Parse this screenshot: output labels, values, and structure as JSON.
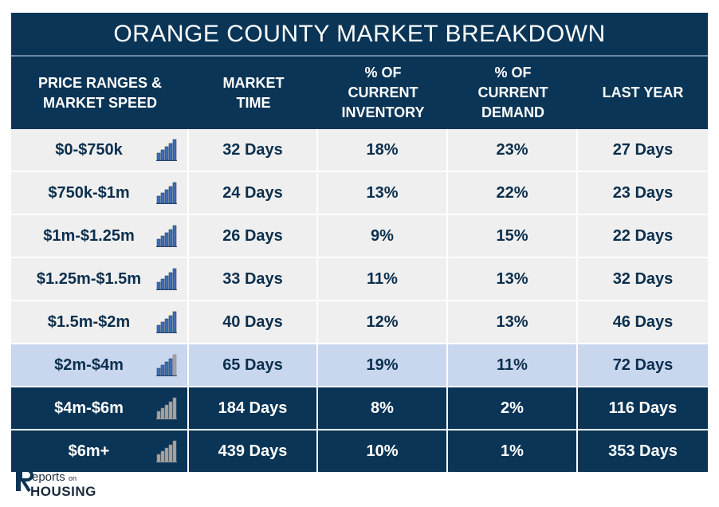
{
  "title": "ORANGE COUNTY MARKET BREAKDOWN",
  "headers": [
    "PRICE RANGES &\nMARKET SPEED",
    "MARKET\nTIME",
    "% OF\nCURRENT\nINVENTORY",
    "% OF\nCURRENT\nDEMAND",
    "LAST YEAR"
  ],
  "rows": [
    {
      "range": "$0-$750k",
      "market_time": "32 Days",
      "inventory": "18%",
      "demand": "23%",
      "last_year": "27 Days",
      "speed_bars_filled": 5,
      "style": "light"
    },
    {
      "range": "$750k-$1m",
      "market_time": "24 Days",
      "inventory": "13%",
      "demand": "22%",
      "last_year": "23 Days",
      "speed_bars_filled": 5,
      "style": "light"
    },
    {
      "range": "$1m-$1.25m",
      "market_time": "26 Days",
      "inventory": "9%",
      "demand": "15%",
      "last_year": "22 Days",
      "speed_bars_filled": 5,
      "style": "light"
    },
    {
      "range": "$1.25m-$1.5m",
      "market_time": "33 Days",
      "inventory": "11%",
      "demand": "13%",
      "last_year": "32 Days",
      "speed_bars_filled": 5,
      "style": "light"
    },
    {
      "range": "$1.5m-$2m",
      "market_time": "40 Days",
      "inventory": "12%",
      "demand": "13%",
      "last_year": "46 Days",
      "speed_bars_filled": 5,
      "style": "light"
    },
    {
      "range": "$2m-$4m",
      "market_time": "65 Days",
      "inventory": "19%",
      "demand": "11%",
      "last_year": "72 Days",
      "speed_bars_filled": 4,
      "style": "hl"
    },
    {
      "range": "$4m-$6m",
      "market_time": "184 Days",
      "inventory": "8%",
      "demand": "2%",
      "last_year": "116 Days",
      "speed_bars_filled": 0,
      "style": "dark"
    },
    {
      "range": "$6m+",
      "market_time": "439 Days",
      "inventory": "10%",
      "demand": "1%",
      "last_year": "353 Days",
      "speed_bars_filled": 0,
      "style": "dark"
    }
  ],
  "logo": {
    "line1": "Reports",
    "line1_small": "on",
    "line2": "HOUSING"
  },
  "colors": {
    "navy": "#0b3556",
    "row_light": "#efefef",
    "row_highlight": "#c8d6ee",
    "bar_blue": "#3f6fb5",
    "bar_gray": "#a6a6a6"
  }
}
